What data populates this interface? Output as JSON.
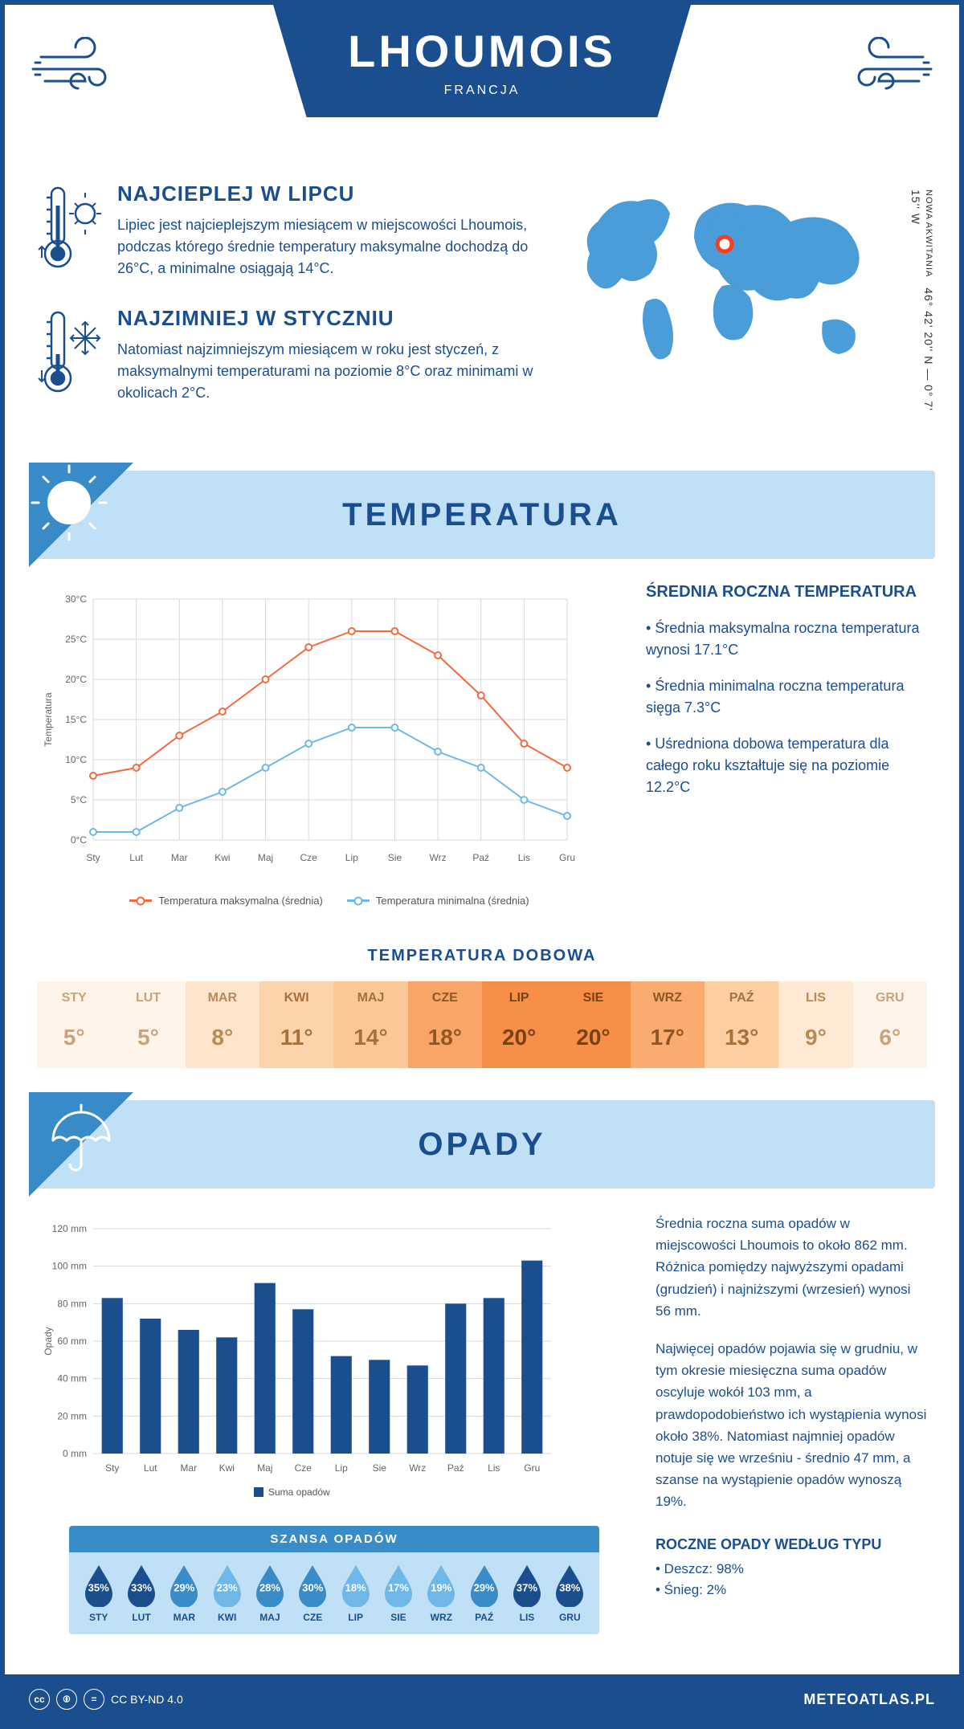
{
  "header": {
    "title": "LHOUMOIS",
    "country": "FRANCJA",
    "coords": "46° 42' 20'' N — 0° 7' 15'' W",
    "region": "NOWA AKWITANIA"
  },
  "colors": {
    "primary": "#1a4e8e",
    "lightblue": "#bfe0f7",
    "midblue": "#6db8e8",
    "darkblue2": "#3a8cc8",
    "orange": "#f26a3e",
    "skyblue": "#6bb9e8"
  },
  "warm": {
    "heading": "NAJCIEPLEJ W LIPCU",
    "body": "Lipiec jest najcieplejszym miesiącem w miejscowości Lhoumois, podczas którego średnie temperatury maksymalne dochodzą do 26°C, a minimalne osiągają 14°C."
  },
  "cold": {
    "heading": "NAJZIMNIEJ W STYCZNIU",
    "body": "Natomiast najzimniejszym miesiącem w roku jest styczeń, z maksymalnymi temperaturami na poziomie 8°C oraz minimami w okolicach 2°C."
  },
  "temp_section": {
    "title": "TEMPERATURA",
    "chart": {
      "type": "line",
      "months": [
        "Sty",
        "Lut",
        "Mar",
        "Kwi",
        "Maj",
        "Cze",
        "Lip",
        "Sie",
        "Wrz",
        "Paź",
        "Lis",
        "Gru"
      ],
      "series": [
        {
          "name": "Temperatura maksymalna (średnia)",
          "color": "#f26a3e",
          "values": [
            8,
            9,
            13,
            16,
            20,
            24,
            26,
            26,
            23,
            18,
            12,
            9
          ]
        },
        {
          "name": "Temperatura minimalna (średnia)",
          "color": "#6bb9e8",
          "values": [
            1,
            1,
            4,
            6,
            9,
            12,
            14,
            14,
            11,
            9,
            5,
            3
          ]
        }
      ],
      "ylabel": "Temperatura",
      "ylim": [
        0,
        30
      ],
      "ytick_step": 5,
      "yticks": [
        "0°C",
        "5°C",
        "10°C",
        "15°C",
        "20°C",
        "25°C",
        "30°C"
      ],
      "grid_color": "#d9d9d9",
      "line_width": 2,
      "marker": "circle",
      "marker_size": 4,
      "background": "#ffffff"
    },
    "side_heading": "ŚREDNIA ROCZNA TEMPERATURA",
    "side_items": [
      "Średnia maksymalna roczna temperatura wynosi 17.1°C",
      "Średnia minimalna roczna temperatura sięga 7.3°C",
      "Uśredniona dobowa temperatura dla całego roku kształtuje się na poziomie 12.2°C"
    ],
    "daily_heading": "TEMPERATURA DOBOWA",
    "daily": {
      "months": [
        "STY",
        "LUT",
        "MAR",
        "KWI",
        "MAJ",
        "CZE",
        "LIP",
        "SIE",
        "WRZ",
        "PAŹ",
        "LIS",
        "GRU"
      ],
      "values": [
        "5°",
        "5°",
        "8°",
        "11°",
        "14°",
        "18°",
        "20°",
        "20°",
        "17°",
        "13°",
        "9°",
        "6°"
      ],
      "bg_colors": [
        "#fef4e9",
        "#fef4e9",
        "#fde4ca",
        "#fcd4ab",
        "#fbc795",
        "#f9a567",
        "#f78f49",
        "#f78f49",
        "#faab70",
        "#fcceA0",
        "#fde9d4",
        "#fef4e9"
      ],
      "text_colors": [
        "#c9a37a",
        "#c9a37a",
        "#b88a5a",
        "#a8713b",
        "#a8713b",
        "#8f5723",
        "#7a4212",
        "#7a4212",
        "#8f5723",
        "#a8713b",
        "#b88a5a",
        "#c9a37a"
      ]
    }
  },
  "precip_section": {
    "title": "OPADY",
    "chart": {
      "type": "bar",
      "months": [
        "Sty",
        "Lut",
        "Mar",
        "Kwi",
        "Maj",
        "Cze",
        "Lip",
        "Sie",
        "Wrz",
        "Paź",
        "Lis",
        "Gru"
      ],
      "values": [
        83,
        72,
        66,
        62,
        91,
        77,
        52,
        50,
        47,
        80,
        83,
        103
      ],
      "bar_color": "#1a4e8e",
      "ylabel": "Opady",
      "ylim": [
        0,
        120
      ],
      "ytick_step": 20,
      "yticks": [
        "0 mm",
        "20 mm",
        "40 mm",
        "60 mm",
        "80 mm",
        "100 mm",
        "120 mm"
      ],
      "grid_color": "#d9d9d9",
      "bar_width": 0.55,
      "legend": "Suma opadów"
    },
    "side_paras": [
      "Średnia roczna suma opadów w miejscowości Lhoumois to około 862 mm. Różnica pomiędzy najwyższymi opadami (grudzień) i najniższymi (wrzesień) wynosi 56 mm.",
      "Najwięcej opadów pojawia się w grudniu, w tym okresie miesięczna suma opadów oscyluje wokół 103 mm, a prawdopodobieństwo ich wystąpienia wynosi około 38%. Natomiast najmniej opadów notuje się we wrześniu - średnio 47 mm, a szanse na wystąpienie opadów wynoszą 19%."
    ],
    "chance_heading": "SZANSA OPADÓW",
    "chance": {
      "months": [
        "STY",
        "LUT",
        "MAR",
        "KWI",
        "MAJ",
        "CZE",
        "LIP",
        "SIE",
        "WRZ",
        "PAŹ",
        "LIS",
        "GRU"
      ],
      "values": [
        "35%",
        "33%",
        "29%",
        "23%",
        "28%",
        "30%",
        "18%",
        "17%",
        "19%",
        "29%",
        "37%",
        "38%"
      ],
      "drop_colors": [
        "#1a4e8e",
        "#1a4e8e",
        "#3a8cc8",
        "#6db8e8",
        "#3a8cc8",
        "#3a8cc8",
        "#6db8e8",
        "#6db8e8",
        "#6db8e8",
        "#3a8cc8",
        "#1a4e8e",
        "#1a4e8e"
      ]
    },
    "type_heading": "ROCZNE OPADY WEDŁUG TYPU",
    "types": [
      "Deszcz: 98%",
      "Śnieg: 2%"
    ]
  },
  "footer": {
    "license": "CC BY-ND 4.0",
    "site": "METEOATLAS.PL"
  }
}
